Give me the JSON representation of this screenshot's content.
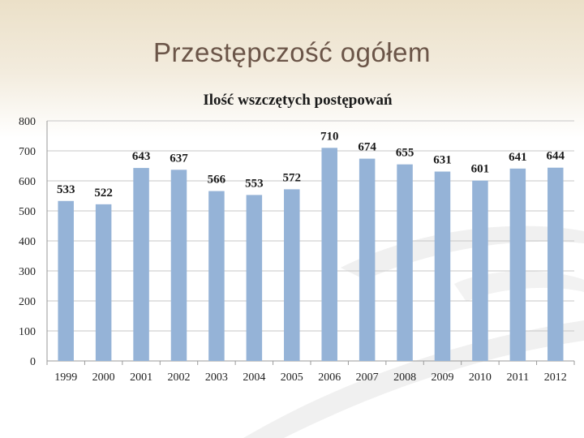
{
  "slide": {
    "title": "Przestępczość ogółem"
  },
  "colors": {
    "bar": "#95b3d7",
    "grid": "#c7c7c7",
    "title": "#6b5548"
  },
  "chart_data": {
    "type": "bar",
    "title": "Ilość wszczętych postępowań",
    "xlabel": "",
    "ylabel": "",
    "categories": [
      "1999",
      "2000",
      "2001",
      "2002",
      "2003",
      "2004",
      "2005",
      "2006",
      "2007",
      "2008",
      "2009",
      "2010",
      "2011",
      "2012"
    ],
    "values": [
      533,
      522,
      643,
      637,
      566,
      553,
      572,
      710,
      674,
      655,
      631,
      601,
      641,
      644
    ],
    "ylim": [
      0,
      800
    ],
    "yticks": [
      0,
      100,
      200,
      300,
      400,
      500,
      600,
      700,
      800
    ],
    "grid": true,
    "legend": "none",
    "data_labels": true
  }
}
